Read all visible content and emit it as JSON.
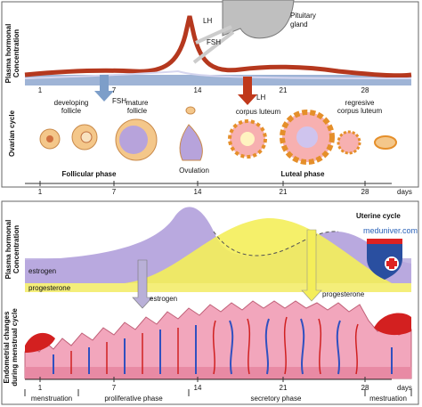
{
  "ovarian_panel": {
    "hormone_axis_label": [
      "Plasma hormonal",
      "Concentration"
    ],
    "lh_label": "LH",
    "fsh_label": "FSH",
    "pituitary_label": [
      "Pituitary",
      "gland"
    ],
    "top_days": [
      "1",
      "7",
      "14",
      "21",
      "28"
    ],
    "fsh_arrow_label": "FSH",
    "lh_arrow_label": "LH",
    "stages": [
      {
        "lines": [
          "developing",
          "follicle"
        ]
      },
      {
        "lines": [
          "mature",
          "follicle"
        ]
      },
      {
        "lines": [
          "corpus luteum"
        ]
      },
      {
        "lines": [
          "regresive",
          "corpus luteum"
        ]
      }
    ],
    "side_label": "Ovarian cycle",
    "phases": [
      "Follicular phase",
      "Ovulation",
      "Luteal phase"
    ],
    "day_axis": {
      "ticks": [
        "1",
        "7",
        "14",
        "21",
        "28"
      ],
      "unit": "days"
    }
  },
  "uterine_panel": {
    "hormone_axis_label": [
      "Plasma hormonal",
      "Concentration"
    ],
    "title": "Uterine cycle",
    "estrogen_label": "estrogen",
    "progesterone_label": "progesterone",
    "estrogen_arrow_label": "estrogen",
    "progesterone_arrow_label": "progesterone",
    "watermark": "meduniver.com",
    "side_label": [
      "Endometrial changes",
      "during menstrual cycle"
    ],
    "day_axis": {
      "ticks": [
        "1",
        "7",
        "14",
        "21",
        "28"
      ],
      "unit": "days"
    },
    "phases": [
      "menstruation",
      "proliferative phase",
      "secretory phase",
      "mestruation"
    ]
  }
}
